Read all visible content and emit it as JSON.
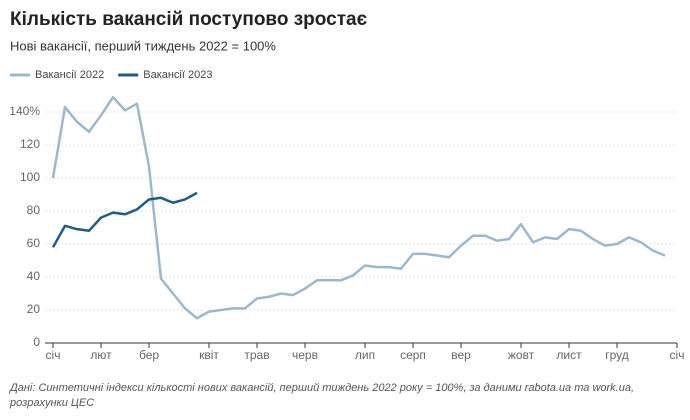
{
  "chart_data": {
    "type": "line",
    "title": "Кількість вакансій поступово зростає",
    "subtitle": "Нові вакансії, перший тиждень 2022 = 100%",
    "categories": [
      "січ",
      null,
      null,
      null,
      "лют",
      null,
      null,
      null,
      "бер",
      null,
      null,
      null,
      null,
      "квіт",
      null,
      null,
      null,
      "трав",
      null,
      null,
      null,
      "черв",
      null,
      null,
      null,
      null,
      "лип",
      null,
      null,
      null,
      "серп",
      null,
      null,
      null,
      "вер",
      null,
      null,
      null,
      null,
      "жовт",
      null,
      null,
      null,
      "лист",
      null,
      null,
      null,
      "груд",
      null,
      null,
      null,
      null,
      "січ"
    ],
    "series": [
      {
        "name": "Вакансії 2022",
        "color": "#9db8cc",
        "values": [
          100,
          143,
          134,
          128,
          138,
          149,
          141,
          145,
          107,
          39,
          30,
          21,
          15,
          19,
          20,
          21,
          21,
          27,
          28,
          30,
          29,
          33,
          38,
          38,
          38,
          41,
          47,
          46,
          46,
          45,
          54,
          54,
          53,
          52,
          59,
          65,
          65,
          62,
          63,
          72,
          61,
          64,
          63,
          69,
          68,
          63,
          59,
          60,
          64,
          61,
          56,
          53,
          null
        ]
      },
      {
        "name": "Вакансії 2023",
        "color": "#1f5a8a",
        "values": [
          58,
          71,
          69,
          68,
          76,
          79,
          78,
          81,
          87,
          88,
          85,
          87,
          91,
          null,
          null,
          null,
          null,
          null,
          null,
          null,
          null,
          null,
          null,
          null,
          null,
          null,
          null,
          null,
          null,
          null,
          null,
          null,
          null,
          null,
          null,
          null,
          null,
          null,
          null,
          null,
          null,
          null,
          null,
          null,
          null,
          null,
          null,
          null,
          null,
          null,
          null,
          null,
          null
        ]
      }
    ],
    "ylim": [
      0,
      150
    ],
    "yticks": [
      0,
      20,
      40,
      60,
      80,
      100,
      120,
      {
        "value": 140,
        "label": "140%"
      }
    ],
    "grid": true,
    "source": [
      "Дані: Синтетичні індекси кількості нових вакансій, перший тиждень 2022 року = 100%, за даними rabota.ua та work.ua,",
      "розрахунки ЦЕС"
    ]
  }
}
